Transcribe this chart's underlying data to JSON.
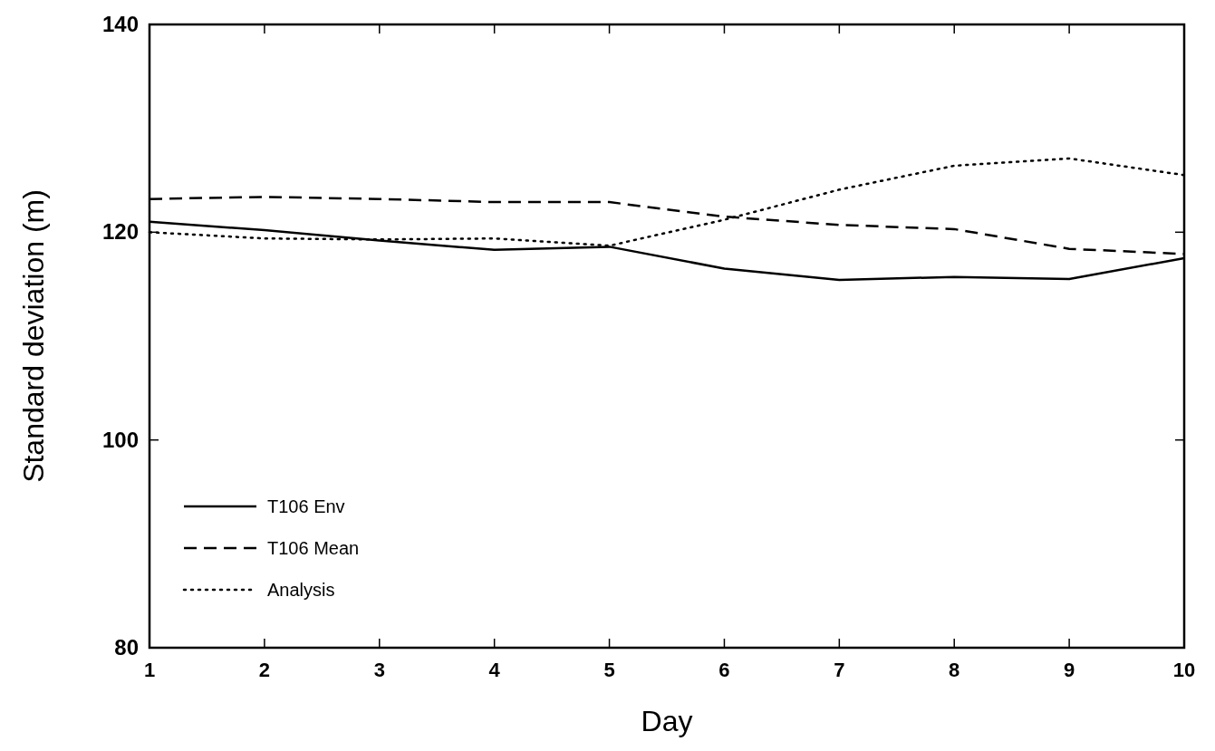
{
  "chart_data": {
    "type": "line",
    "xlabel": "Day",
    "ylabel": "Standard deviation  (m)",
    "x": [
      1,
      2,
      3,
      4,
      5,
      6,
      7,
      8,
      9,
      10
    ],
    "xlim": [
      1,
      10
    ],
    "xticks": [
      1,
      2,
      3,
      4,
      5,
      6,
      7,
      8,
      9,
      10
    ],
    "ylim": [
      80,
      140
    ],
    "yticks": [
      80,
      100,
      120,
      140
    ],
    "grid": false,
    "legend": "bottom left",
    "marker": "none",
    "series": [
      {
        "name": "T106 Env",
        "color": "#000000",
        "line_style": "solid",
        "values": [
          121.0,
          120.2,
          119.2,
          118.3,
          118.6,
          116.5,
          115.4,
          115.7,
          115.5,
          117.5
        ]
      },
      {
        "name": "T106 Mean",
        "color": "#000000",
        "line_style": "dashed",
        "values": [
          123.2,
          123.4,
          123.2,
          122.9,
          122.9,
          121.5,
          120.7,
          120.3,
          118.4,
          117.9
        ]
      },
      {
        "name": "Analysis",
        "color": "#000000",
        "line_style": "dotted",
        "values": [
          120.0,
          119.4,
          119.3,
          119.4,
          118.7,
          121.2,
          124.1,
          126.4,
          127.1,
          125.5
        ]
      }
    ]
  }
}
